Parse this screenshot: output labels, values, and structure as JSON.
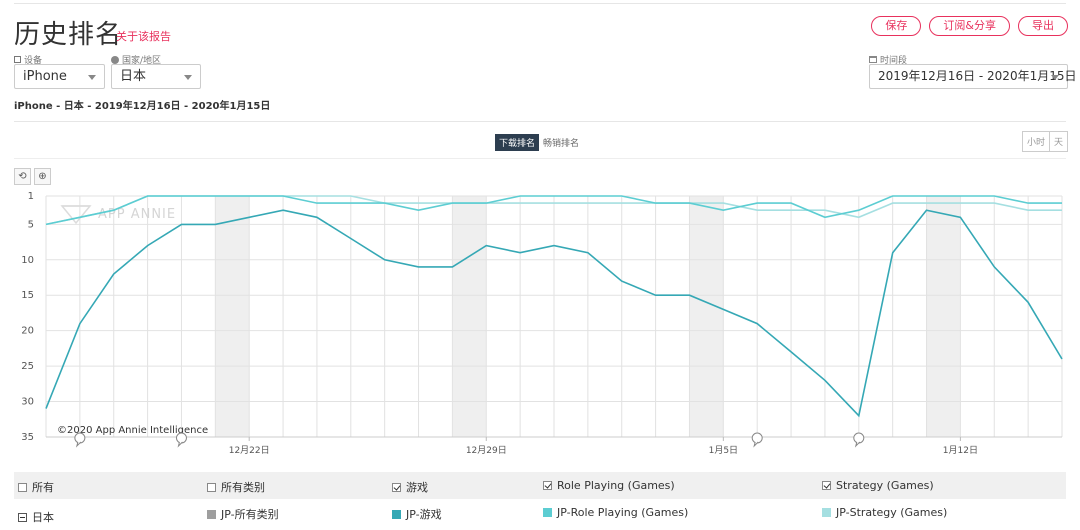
{
  "header": {
    "title": "历史排名",
    "report_link": "关于该报告",
    "actions": {
      "save": "保存",
      "subscribe": "订阅&分享",
      "export": "导出"
    }
  },
  "filters": {
    "device_label": "设备",
    "device_value": "iPhone",
    "country_label": "国家/地区",
    "country_value": "日本",
    "period_label": "时间段",
    "period_value": "2019年12月16日 - 2020年1月15日"
  },
  "subtitle": "iPhone - 日本 - 2019年12月16日 - 2020年1月15日",
  "chart_controls": {
    "download_rank": "下载排名",
    "grossing_rank": "畅销排名",
    "hour": "小时",
    "day": "天",
    "reset": "⟲",
    "zoom": "⊕"
  },
  "chart_data": {
    "type": "line",
    "watermark": "APP ANNIE",
    "copyright": "©2020 App Annie Intelligence",
    "ylim": [
      35,
      1
    ],
    "y_ticks": [
      "1",
      "5",
      "10",
      "15",
      "20",
      "25",
      "30",
      "35"
    ],
    "x_tick_labels": [
      "12月22日",
      "12月29日",
      "1月5日",
      "1月12日"
    ],
    "x": [
      "2019-12-16",
      "2019-12-17",
      "2019-12-18",
      "2019-12-19",
      "2019-12-20",
      "2019-12-21",
      "2019-12-22",
      "2019-12-23",
      "2019-12-24",
      "2019-12-25",
      "2019-12-26",
      "2019-12-27",
      "2019-12-28",
      "2019-12-29",
      "2019-12-30",
      "2019-12-31",
      "2020-01-01",
      "2020-01-02",
      "2020-01-03",
      "2020-01-04",
      "2020-01-05",
      "2020-01-06",
      "2020-01-07",
      "2020-01-08",
      "2020-01-09",
      "2020-01-10",
      "2020-01-11",
      "2020-01-12",
      "2020-01-13",
      "2020-01-14",
      "2020-01-15"
    ],
    "series": [
      {
        "name": "JP-游戏",
        "color": "#35a8b5",
        "values": [
          31,
          19,
          12,
          8,
          5,
          5,
          4,
          3,
          4,
          7,
          10,
          11,
          11,
          8,
          9,
          8,
          9,
          13,
          15,
          15,
          17,
          19,
          23,
          27,
          32,
          9,
          3,
          4,
          11,
          16,
          24
        ]
      },
      {
        "name": "JP-Role Playing (Games)",
        "color": "#5ccdd2",
        "values": [
          5,
          4,
          3,
          1,
          1,
          1,
          1,
          1,
          2,
          2,
          2,
          3,
          2,
          2,
          1,
          1,
          1,
          1,
          2,
          2,
          3,
          2,
          2,
          4,
          3,
          1,
          1,
          1,
          1,
          2,
          2
        ]
      },
      {
        "name": "JP-Strategy (Games)",
        "color": "#a5dfe1",
        "values": [
          5,
          4,
          3,
          1,
          1,
          1,
          1,
          1,
          1,
          1,
          2,
          2,
          2,
          2,
          2,
          2,
          2,
          2,
          2,
          2,
          2,
          3,
          3,
          3,
          4,
          2,
          2,
          2,
          2,
          3,
          3
        ]
      }
    ],
    "weekend_bands": [
      [
        "2019-12-21",
        "2019-12-22"
      ],
      [
        "2019-12-28",
        "2019-12-29"
      ],
      [
        "2020-01-04",
        "2020-01-05"
      ],
      [
        "2020-01-11",
        "2020-01-12"
      ]
    ],
    "event_markers": [
      "2019-12-17",
      "2019-12-20",
      "2020-01-06",
      "2020-01-09"
    ]
  },
  "legend": {
    "headers": [
      "所有",
      "所有类别",
      "游戏",
      "Role Playing (Games)",
      "Strategy (Games)"
    ],
    "header_checked": [
      false,
      false,
      true,
      true,
      true
    ],
    "row_label": "日本",
    "row_items": [
      {
        "label": "JP-所有类别",
        "color": "#9e9e9e"
      },
      {
        "label": "JP-游戏",
        "color": "#35a8b5"
      },
      {
        "label": "JP-Role Playing (Games)",
        "color": "#5ccdd2"
      },
      {
        "label": "JP-Strategy (Games)",
        "color": "#a5dfe1"
      }
    ]
  }
}
